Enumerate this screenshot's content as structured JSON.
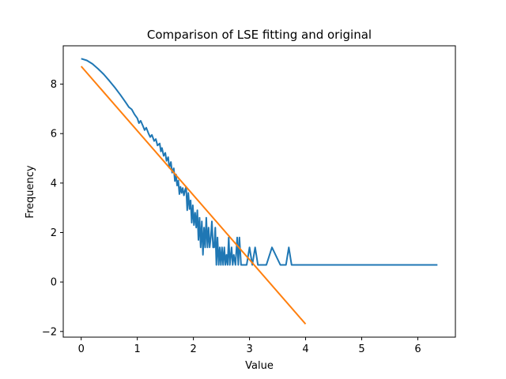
{
  "chart_data": {
    "type": "line",
    "title": "Comparison of LSE fitting and original",
    "xlabel": "Value",
    "ylabel": "Frequency",
    "xlim": [
      -0.32,
      6.67
    ],
    "ylim": [
      -2.23,
      9.55
    ],
    "xticks": [
      0,
      1,
      2,
      3,
      4,
      5,
      6
    ],
    "yticks": [
      -2,
      0,
      2,
      4,
      6,
      8
    ],
    "grid": false,
    "legend": "none",
    "series": [
      {
        "color": "#1f77b4",
        "points": [
          [
            0.0,
            9.03
          ],
          [
            0.1,
            8.96
          ],
          [
            0.2,
            8.82
          ],
          [
            0.3,
            8.62
          ],
          [
            0.4,
            8.4
          ],
          [
            0.5,
            8.14
          ],
          [
            0.6,
            7.86
          ],
          [
            0.7,
            7.56
          ],
          [
            0.8,
            7.24
          ],
          [
            0.85,
            7.07
          ],
          [
            0.9,
            6.98
          ],
          [
            0.95,
            6.78
          ],
          [
            1.0,
            6.62
          ],
          [
            1.03,
            6.42
          ],
          [
            1.06,
            6.52
          ],
          [
            1.1,
            6.31
          ],
          [
            1.13,
            6.14
          ],
          [
            1.16,
            6.24
          ],
          [
            1.2,
            6.0
          ],
          [
            1.23,
            5.86
          ],
          [
            1.26,
            5.95
          ],
          [
            1.3,
            5.7
          ],
          [
            1.33,
            5.78
          ],
          [
            1.36,
            5.52
          ],
          [
            1.4,
            5.6
          ],
          [
            1.42,
            5.28
          ],
          [
            1.44,
            5.42
          ],
          [
            1.47,
            5.1
          ],
          [
            1.5,
            5.22
          ],
          [
            1.52,
            4.9
          ],
          [
            1.55,
            5.05
          ],
          [
            1.57,
            4.62
          ],
          [
            1.6,
            4.85
          ],
          [
            1.62,
            4.42
          ],
          [
            1.65,
            4.6
          ],
          [
            1.67,
            4.08
          ],
          [
            1.69,
            4.35
          ],
          [
            1.71,
            3.9
          ],
          [
            1.73,
            4.1
          ],
          [
            1.75,
            3.55
          ],
          [
            1.77,
            3.85
          ],
          [
            1.79,
            3.6
          ],
          [
            1.81,
            3.8
          ],
          [
            1.83,
            3.5
          ],
          [
            1.85,
            3.7
          ],
          [
            1.87,
            3.85
          ],
          [
            1.89,
            2.9
          ],
          [
            1.91,
            3.6
          ],
          [
            1.93,
            2.95
          ],
          [
            1.95,
            3.3
          ],
          [
            1.97,
            2.4
          ],
          [
            1.99,
            3.1
          ],
          [
            2.01,
            2.3
          ],
          [
            2.03,
            2.8
          ],
          [
            2.05,
            2.2
          ],
          [
            2.07,
            2.9
          ],
          [
            2.09,
            1.7
          ],
          [
            2.11,
            2.6
          ],
          [
            2.13,
            1.4
          ],
          [
            2.15,
            2.45
          ],
          [
            2.17,
            1.1
          ],
          [
            2.19,
            2.2
          ],
          [
            2.21,
            1.4
          ],
          [
            2.23,
            2.6
          ],
          [
            2.25,
            1.4
          ],
          [
            2.27,
            2.2
          ],
          [
            2.29,
            1.4
          ],
          [
            2.31,
            1.8
          ],
          [
            2.33,
            2.45
          ],
          [
            2.35,
            1.4
          ],
          [
            2.37,
            1.4
          ],
          [
            2.39,
            2.2
          ],
          [
            2.41,
            0.69
          ],
          [
            2.43,
            1.8
          ],
          [
            2.45,
            0.69
          ],
          [
            2.47,
            1.4
          ],
          [
            2.49,
            0.69
          ],
          [
            2.51,
            1.4
          ],
          [
            2.53,
            0.69
          ],
          [
            2.55,
            1.4
          ],
          [
            2.57,
            0.69
          ],
          [
            2.59,
            1.1
          ],
          [
            2.61,
            0.69
          ],
          [
            2.63,
            1.8
          ],
          [
            2.65,
            0.69
          ],
          [
            2.68,
            1.4
          ],
          [
            2.7,
            0.69
          ],
          [
            2.72,
            1.1
          ],
          [
            2.75,
            0.69
          ],
          [
            2.78,
            1.8
          ],
          [
            2.8,
            0.69
          ],
          [
            2.82,
            1.8
          ],
          [
            2.85,
            0.69
          ],
          [
            2.9,
            0.69
          ],
          [
            2.95,
            0.69
          ],
          [
            3.0,
            1.4
          ],
          [
            3.05,
            0.69
          ],
          [
            3.1,
            1.4
          ],
          [
            3.15,
            0.69
          ],
          [
            3.3,
            0.69
          ],
          [
            3.4,
            1.4
          ],
          [
            3.55,
            0.69
          ],
          [
            3.65,
            0.69
          ],
          [
            3.7,
            1.4
          ],
          [
            3.75,
            0.69
          ],
          [
            4.5,
            0.69
          ],
          [
            5.5,
            0.69
          ],
          [
            6.35,
            0.69
          ]
        ]
      },
      {
        "color": "#ff7f0e",
        "points": [
          [
            0.0,
            8.72
          ],
          [
            4.0,
            -1.7
          ]
        ]
      }
    ]
  }
}
